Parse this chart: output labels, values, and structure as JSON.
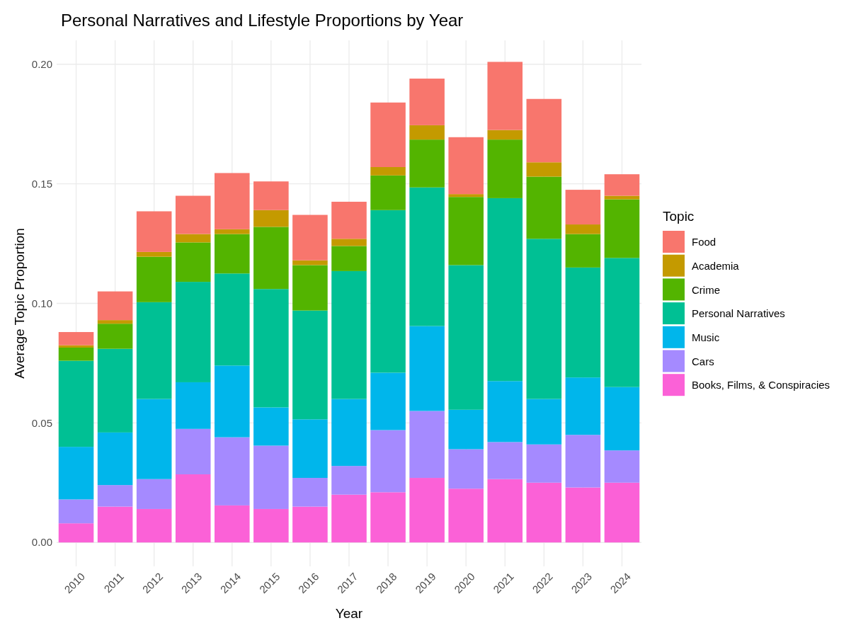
{
  "chart_data": {
    "type": "bar",
    "stacked": true,
    "title": "Personal Narratives and Lifestyle Proportions by Year",
    "xlabel": "Year",
    "ylabel": "Average Topic Proportion",
    "legend_title": "Topic",
    "legend": "right",
    "grid": true,
    "categories": [
      "2010",
      "2011",
      "2012",
      "2013",
      "2014",
      "2015",
      "2016",
      "2017",
      "2018",
      "2019",
      "2020",
      "2021",
      "2022",
      "2023",
      "2024"
    ],
    "ylim": [
      -0.01,
      0.21
    ],
    "yticks": [
      {
        "value": 0,
        "label": "0.00"
      },
      {
        "value": 0.05,
        "label": "0.05"
      },
      {
        "value": 0.1,
        "label": "0.10"
      },
      {
        "value": 0.15,
        "label": "0.15"
      },
      {
        "value": 0.2,
        "label": "0.20"
      }
    ],
    "series": [
      {
        "name": "Books, Films, & Conspiracies",
        "color": "#fb61d7",
        "values": [
          0.008,
          0.015,
          0.014,
          0.0285,
          0.0155,
          0.014,
          0.015,
          0.02,
          0.021,
          0.027,
          0.0225,
          0.0265,
          0.025,
          0.023,
          0.025
        ]
      },
      {
        "name": "Cars",
        "color": "#a58aff",
        "values": [
          0.01,
          0.009,
          0.0125,
          0.019,
          0.0285,
          0.0265,
          0.012,
          0.012,
          0.026,
          0.028,
          0.0165,
          0.0155,
          0.016,
          0.022,
          0.0135
        ]
      },
      {
        "name": "Music",
        "color": "#00b6eb",
        "values": [
          0.022,
          0.022,
          0.0335,
          0.0195,
          0.03,
          0.016,
          0.0245,
          0.028,
          0.024,
          0.0355,
          0.0165,
          0.0255,
          0.019,
          0.024,
          0.0265
        ]
      },
      {
        "name": "Personal Narratives",
        "color": "#00c094",
        "values": [
          0.036,
          0.035,
          0.0405,
          0.042,
          0.0385,
          0.0495,
          0.0455,
          0.0535,
          0.068,
          0.058,
          0.0605,
          0.0765,
          0.067,
          0.046,
          0.054
        ]
      },
      {
        "name": "Crime",
        "color": "#53b400",
        "values": [
          0.0055,
          0.0105,
          0.019,
          0.0165,
          0.0165,
          0.026,
          0.019,
          0.0105,
          0.0145,
          0.02,
          0.0285,
          0.0245,
          0.026,
          0.014,
          0.0245
        ]
      },
      {
        "name": "Academia",
        "color": "#c49a00",
        "values": [
          0.001,
          0.0015,
          0.002,
          0.0035,
          0.002,
          0.007,
          0.002,
          0.003,
          0.0035,
          0.006,
          0.0012,
          0.004,
          0.006,
          0.004,
          0.0015
        ]
      },
      {
        "name": "Food",
        "color": "#f8766d",
        "values": [
          0.0055,
          0.012,
          0.017,
          0.016,
          0.0235,
          0.012,
          0.019,
          0.0155,
          0.027,
          0.0195,
          0.0238,
          0.0285,
          0.0265,
          0.0145,
          0.009
        ]
      }
    ]
  }
}
